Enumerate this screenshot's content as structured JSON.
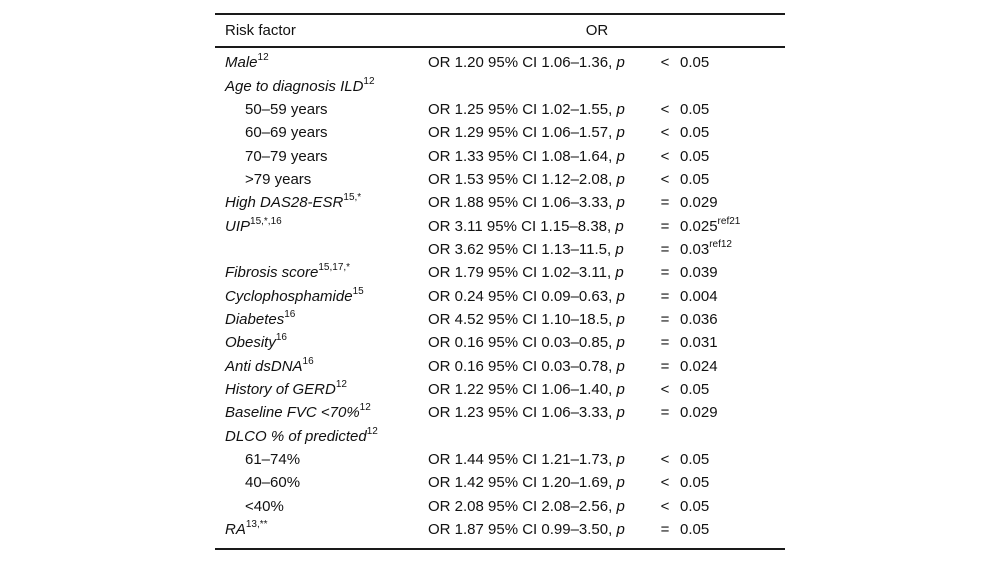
{
  "table": {
    "header": {
      "risk_factor": "Risk factor",
      "or": "OR"
    },
    "p_label": "p",
    "rows": [
      {
        "label": "Male",
        "sup": "12",
        "italic": true,
        "indent": false,
        "ci": "OR 1.20 95% CI 1.06–1.36,",
        "op": "<",
        "value": "0.05",
        "value_sup": ""
      },
      {
        "label": "Age to diagnosis ILD",
        "sup": "12",
        "italic": true,
        "indent": false,
        "ci": "",
        "op": "",
        "value": "",
        "value_sup": ""
      },
      {
        "label": "50–59 years",
        "sup": "",
        "italic": false,
        "indent": true,
        "ci": "OR 1.25 95% CI 1.02–1.55,",
        "op": "<",
        "value": "0.05",
        "value_sup": ""
      },
      {
        "label": "60–69 years",
        "sup": "",
        "italic": false,
        "indent": true,
        "ci": "OR 1.29 95% CI 1.06–1.57,",
        "op": "<",
        "value": "0.05",
        "value_sup": ""
      },
      {
        "label": "70–79 years",
        "sup": "",
        "italic": false,
        "indent": true,
        "ci": "OR 1.33 95% CI 1.08–1.64,",
        "op": "<",
        "value": "0.05",
        "value_sup": ""
      },
      {
        "label": ">79 years",
        "sup": "",
        "italic": false,
        "indent": true,
        "ci": "OR 1.53 95% CI 1.12–2.08,",
        "op": "<",
        "value": "0.05",
        "value_sup": ""
      },
      {
        "label": "High DAS28-ESR",
        "sup": "15,*",
        "italic": true,
        "indent": false,
        "ci": "OR 1.88 95% CI 1.06–3.33,",
        "op": "=",
        "value": "0.029",
        "value_sup": ""
      },
      {
        "label": "UIP",
        "sup": "15,*,16",
        "italic": true,
        "indent": false,
        "ci": "OR 3.11 95% CI 1.15–8.38,",
        "op": "=",
        "value": "0.025",
        "value_sup": "ref21"
      },
      {
        "label": "",
        "sup": "",
        "italic": false,
        "indent": false,
        "ci": "OR 3.62 95% CI 1.13–11.5,",
        "op": "=",
        "value": "0.03",
        "value_sup": "ref12"
      },
      {
        "label": "Fibrosis score",
        "sup": "15,17,*",
        "italic": true,
        "indent": false,
        "ci": "OR 1.79 95% CI 1.02–3.11,",
        "op": "=",
        "value": "0.039",
        "value_sup": ""
      },
      {
        "label": "Cyclophosphamide",
        "sup": "15",
        "italic": true,
        "indent": false,
        "ci": "OR 0.24 95% CI 0.09–0.63,",
        "op": "=",
        "value": "0.004",
        "value_sup": ""
      },
      {
        "label": "Diabetes",
        "sup": "16",
        "italic": true,
        "indent": false,
        "ci": "OR 4.52 95% CI 1.10–18.5,",
        "op": "=",
        "value": "0.036",
        "value_sup": ""
      },
      {
        "label": "Obesity",
        "sup": "16",
        "italic": true,
        "indent": false,
        "ci": "OR 0.16 95% CI 0.03–0.85,",
        "op": "=",
        "value": "0.031",
        "value_sup": ""
      },
      {
        "label": "Anti dsDNA",
        "sup": "16",
        "italic": true,
        "indent": false,
        "ci": "OR 0.16 95% CI 0.03–0.78,",
        "op": "=",
        "value": "0.024",
        "value_sup": ""
      },
      {
        "label": "History of GERD",
        "sup": "12",
        "italic": true,
        "indent": false,
        "ci": "OR 1.22 95% CI 1.06–1.40,",
        "op": "<",
        "value": "0.05",
        "value_sup": ""
      },
      {
        "label": "Baseline FVC <70%",
        "sup": "12",
        "italic": true,
        "indent": false,
        "ci": "OR 1.23 95% CI 1.06–3.33,",
        "op": "=",
        "value": "0.029",
        "value_sup": ""
      },
      {
        "label": "DLCO % of predicted",
        "sup": "12",
        "italic": true,
        "indent": false,
        "ci": "",
        "op": "",
        "value": "",
        "value_sup": ""
      },
      {
        "label": "61–74%",
        "sup": "",
        "italic": false,
        "indent": true,
        "ci": "OR 1.44 95% CI 1.21–1.73,",
        "op": "<",
        "value": "0.05",
        "value_sup": ""
      },
      {
        "label": "40–60%",
        "sup": "",
        "italic": false,
        "indent": true,
        "ci": "OR 1.42 95% CI 1.20–1.69,",
        "op": "<",
        "value": "0.05",
        "value_sup": ""
      },
      {
        "label": "<40%",
        "sup": "",
        "italic": false,
        "indent": true,
        "ci": "OR 2.08 95% CI 2.08–2.56,",
        "op": "<",
        "value": "0.05",
        "value_sup": ""
      },
      {
        "label": "RA",
        "sup": "13,**",
        "italic": true,
        "indent": false,
        "ci": "OR 1.87 95% CI 0.99–3.50,",
        "op": "=",
        "value": "0.05",
        "value_sup": ""
      }
    ]
  }
}
